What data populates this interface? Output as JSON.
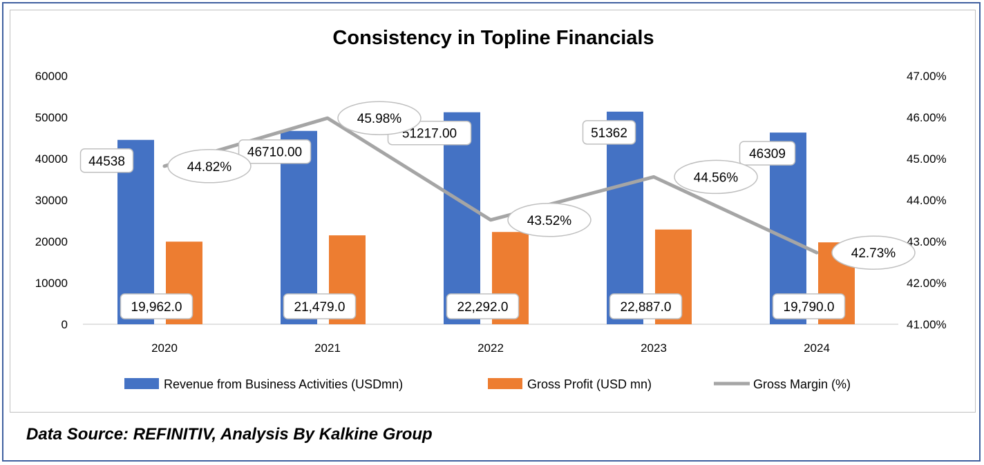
{
  "chart_data": {
    "type": "bar",
    "title": "Consistency in Topline Financials",
    "categories": [
      "2020",
      "2021",
      "2022",
      "2023",
      "2024"
    ],
    "series": [
      {
        "name": "Revenue from Business Activities (USDmn)",
        "kind": "bar",
        "axis": "left",
        "color": "#4472c4",
        "values": [
          44538,
          46710,
          51217,
          51362,
          46309
        ],
        "labels": [
          "44538",
          "46710.00",
          "51217.00",
          "51362",
          "46309"
        ]
      },
      {
        "name": "Gross Profit  (USD mn)",
        "kind": "bar",
        "axis": "left",
        "color": "#ed7d31",
        "values": [
          19962,
          21479,
          22292,
          22887,
          19790
        ],
        "labels": [
          "19,962.0",
          "21,479.0",
          "22,292.0",
          "22,887.0",
          "19,790.0"
        ]
      },
      {
        "name": "Gross Margin (%)",
        "kind": "line",
        "axis": "right",
        "color": "#a5a5a5",
        "values": [
          44.82,
          45.98,
          43.52,
          44.56,
          42.73
        ],
        "labels": [
          "44.82%",
          "45.98%",
          "43.52%",
          "44.56%",
          "42.73%"
        ]
      }
    ],
    "ylim_left": [
      0,
      60000
    ],
    "yticks_left": [
      "0",
      "10000",
      "20000",
      "30000",
      "40000",
      "50000",
      "60000"
    ],
    "ylim_right": [
      41,
      47
    ],
    "yticks_right": [
      "41.00%",
      "42.00%",
      "43.00%",
      "44.00%",
      "45.00%",
      "46.00%",
      "47.00%"
    ],
    "legend_position": "bottom",
    "grid": false
  },
  "source_note": "Data Source: REFINITIV, Analysis By Kalkine Group"
}
